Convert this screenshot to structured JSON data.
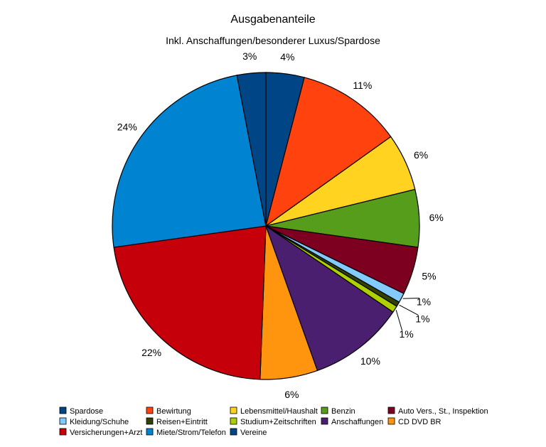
{
  "chart_data": {
    "type": "pie",
    "title": "Ausgabenanteile",
    "subtitle": "Inkl. Anschaffungen/besonderer Luxus/Spardose",
    "legend_position": "bottom",
    "slices": [
      {
        "name": "Spardose",
        "value": 4,
        "label": "4%",
        "color": "#004586"
      },
      {
        "name": "Bewirtung",
        "value": 11,
        "label": "11%",
        "color": "#ff420e"
      },
      {
        "name": "Lebensmittel/Haushalt",
        "value": 6,
        "label": "6%",
        "color": "#ffd320"
      },
      {
        "name": "Benzin",
        "value": 6,
        "label": "6%",
        "color": "#579d1c"
      },
      {
        "name": "Auto Vers., St., Inspektion",
        "value": 5,
        "label": "5%",
        "color": "#7e0021"
      },
      {
        "name": "Kleidung/Schuhe",
        "value": 1,
        "label": "1%",
        "color": "#83caff"
      },
      {
        "name": "Reisen+Eintritt",
        "value": 0.5,
        "label": "1%",
        "color": "#314004"
      },
      {
        "name": "Studium+Zeitschriften",
        "value": 0.7,
        "label": "1%",
        "color": "#aecf00"
      },
      {
        "name": "Anschaffungen",
        "value": 10,
        "label": "10%",
        "color": "#4b1f6f"
      },
      {
        "name": "CD DVD BR",
        "value": 6,
        "label": "6%",
        "color": "#ff950e"
      },
      {
        "name": "Versicherungen+Arzt",
        "value": 22,
        "label": "22%",
        "color": "#c5000b"
      },
      {
        "name": "Miete/Strom/Telefon",
        "value": 24,
        "label": "24%",
        "color": "#0084d1"
      },
      {
        "name": "Vereine",
        "value": 3,
        "label": "3%",
        "color": "#004586"
      }
    ]
  }
}
